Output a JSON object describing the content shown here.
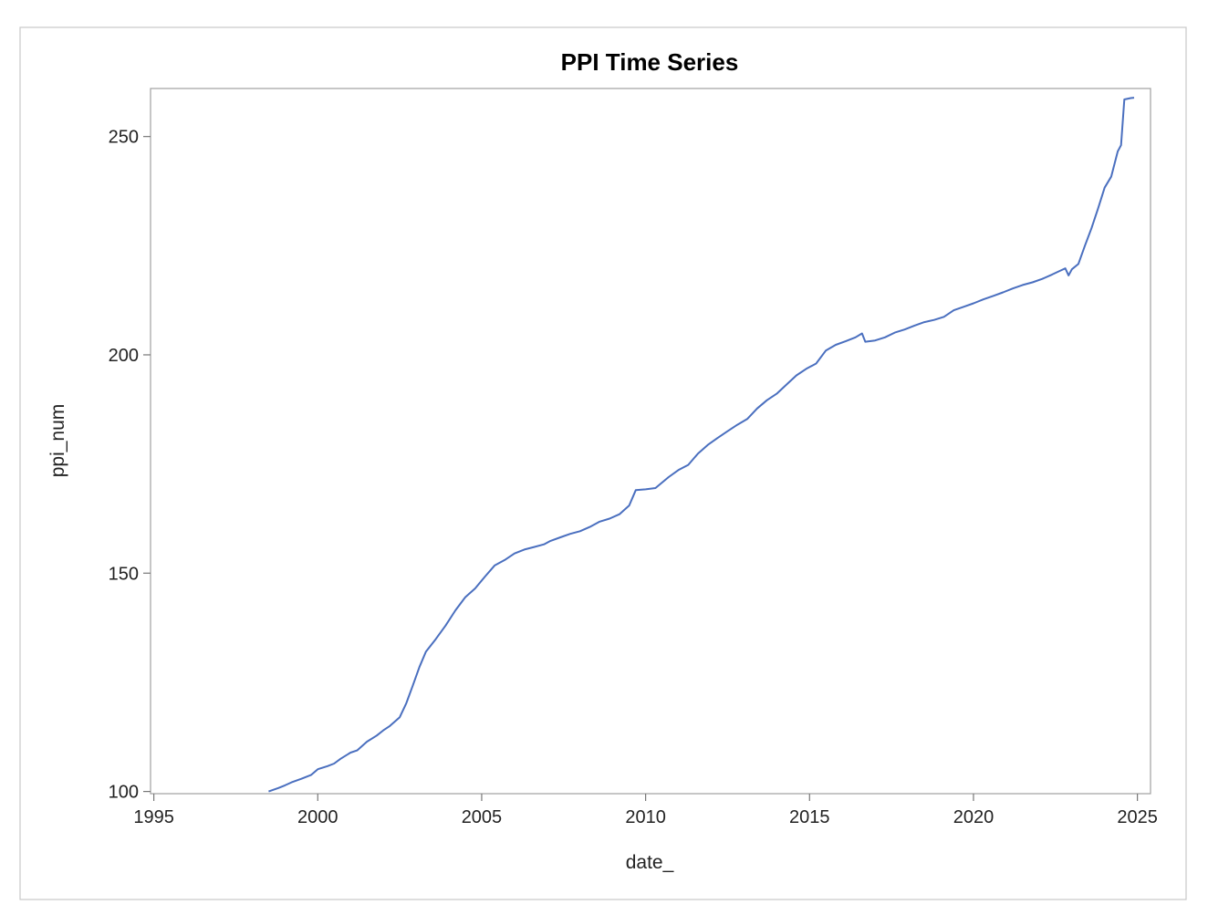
{
  "chart_data": {
    "type": "line",
    "title": "PPI Time Series",
    "xlabel": "date_",
    "ylabel": "ppi_num",
    "xlim": [
      1994.9,
      2025.4
    ],
    "ylim": [
      99.5,
      261.0
    ],
    "xticks": [
      1995,
      2000,
      2005,
      2010,
      2015,
      2020,
      2025
    ],
    "yticks": [
      100,
      150,
      200,
      250
    ],
    "grid": false,
    "legend": "none",
    "line_color": "#4a6fbf",
    "series": [
      {
        "x": [
          1998.5,
          1998.8,
          1999.0,
          1999.2,
          1999.5,
          1999.8,
          2000.0,
          2000.3,
          2000.5,
          2000.7,
          2001.0,
          2001.2,
          2001.5,
          2001.8,
          2002.0,
          2002.2,
          2002.5,
          2002.7,
          2002.9,
          2003.1,
          2003.3,
          2003.6,
          2003.9,
          2004.2,
          2004.5,
          2004.8,
          2005.1,
          2005.4,
          2005.7,
          2006.0,
          2006.3,
          2006.6,
          2006.9,
          2007.1,
          2007.4,
          2007.7,
          2008.0,
          2008.3,
          2008.6,
          2008.9,
          2009.2,
          2009.5,
          2009.7,
          2010.0,
          2010.3,
          2010.7,
          2011.0,
          2011.3,
          2011.6,
          2011.9,
          2012.2,
          2012.5,
          2012.8,
          2013.1,
          2013.4,
          2013.7,
          2014.0,
          2014.3,
          2014.6,
          2014.9,
          2015.2,
          2015.5,
          2015.8,
          2016.1,
          2016.4,
          2016.6,
          2016.7,
          2017.0,
          2017.3,
          2017.6,
          2017.9,
          2018.2,
          2018.5,
          2018.8,
          2019.1,
          2019.4,
          2019.7,
          2020.0,
          2020.3,
          2020.6,
          2020.9,
          2021.2,
          2021.5,
          2021.8,
          2022.1,
          2022.4,
          2022.6,
          2022.8,
          2022.9,
          2023.0,
          2023.2,
          2023.4,
          2023.6,
          2023.8,
          2024.0,
          2024.2,
          2024.4,
          2024.5,
          2024.6,
          2024.8,
          2024.9
        ],
        "y": [
          100.0,
          100.8,
          101.4,
          102.1,
          102.9,
          103.8,
          105.1,
          105.8,
          106.4,
          107.5,
          108.9,
          109.4,
          111.4,
          112.8,
          114.0,
          115.0,
          117.0,
          120.2,
          124.3,
          128.5,
          132.0,
          134.9,
          138.0,
          141.5,
          144.5,
          146.5,
          149.2,
          151.8,
          153.0,
          154.5,
          155.4,
          156.0,
          156.6,
          157.4,
          158.2,
          159.0,
          159.6,
          160.6,
          161.8,
          162.5,
          163.5,
          165.5,
          169.0,
          169.2,
          169.5,
          172.0,
          173.6,
          174.8,
          177.4,
          179.4,
          181.0,
          182.5,
          184.0,
          185.3,
          187.7,
          189.6,
          191.1,
          193.2,
          195.3,
          196.8,
          198.0,
          201.0,
          202.3,
          203.1,
          204.0,
          204.9,
          203.0,
          203.3,
          204.0,
          205.1,
          205.8,
          206.7,
          207.5,
          208.0,
          208.7,
          210.2,
          211.0,
          211.8,
          212.7,
          213.5,
          214.3,
          215.2,
          216.0,
          216.6,
          217.4,
          218.4,
          219.1,
          219.8,
          218.2,
          219.6,
          220.8,
          225.0,
          229.0,
          233.5,
          238.3,
          240.8,
          246.6,
          248.0,
          258.5,
          258.8,
          258.9
        ]
      }
    ]
  }
}
